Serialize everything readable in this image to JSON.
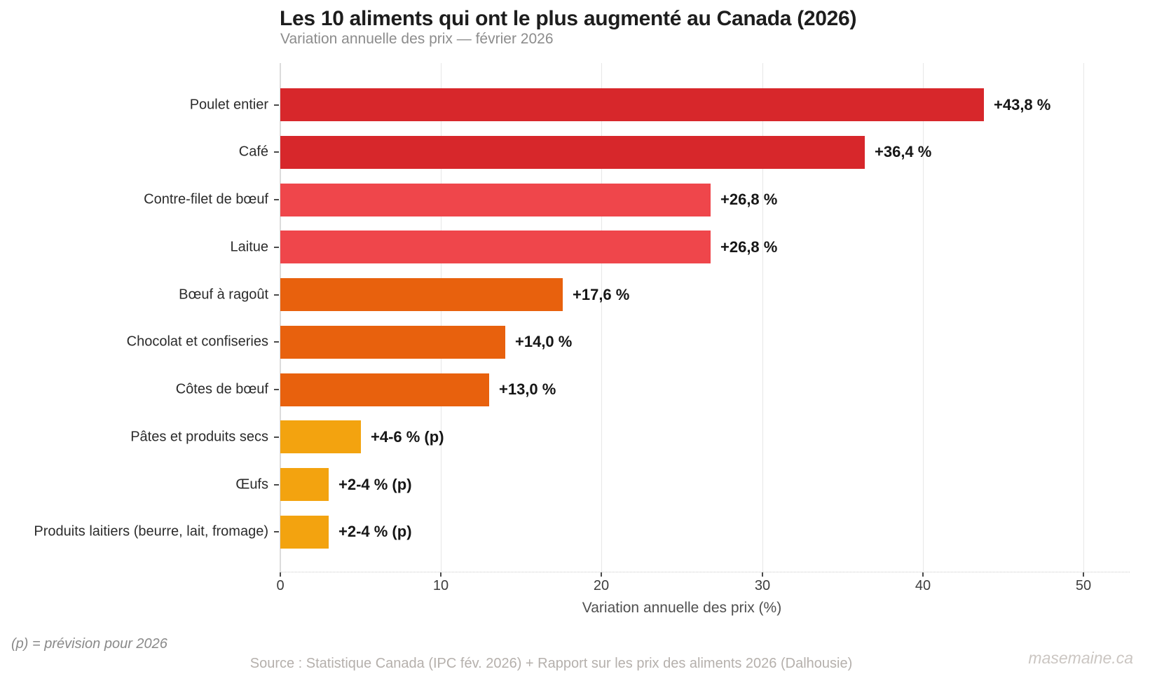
{
  "header": {
    "title": "Les 10 aliments qui ont le plus augmenté au Canada (2026)",
    "subtitle": "Variation annuelle des prix — février 2026"
  },
  "chart_data": {
    "type": "bar",
    "orientation": "horizontal",
    "title": "Les 10 aliments qui ont le plus augmenté au Canada (2026)",
    "subtitle": "Variation annuelle des prix — février 2026",
    "categories": [
      "Poulet entier",
      "Café",
      "Contre-filet de bœuf",
      "Laitue",
      "Bœuf à ragoût",
      "Chocolat et confiseries",
      "Côtes de bœuf",
      "Pâtes et produits secs",
      "Œufs",
      "Produits laitiers (beurre, lait, fromage)"
    ],
    "values": [
      43.8,
      36.4,
      26.8,
      26.8,
      17.6,
      14.0,
      13.0,
      5.0,
      3.0,
      3.0
    ],
    "value_labels": [
      "+43,8 %",
      "+36,4 %",
      "+26,8 %",
      "+26,8 %",
      "+17,6 %",
      "+14,0 %",
      "+13,0 %",
      "+4-6 % (p)",
      "+2-4 % (p)",
      "+2-4 % (p)"
    ],
    "bar_colors": [
      "#d7272b",
      "#d7272b",
      "#ef464b",
      "#ef464b",
      "#e8610d",
      "#e8610d",
      "#e8610d",
      "#f3a30f",
      "#f3a30f",
      "#f3a30f"
    ],
    "xlabel": "Variation annuelle des prix (%)",
    "ylabel": "",
    "xlim": [
      0,
      52.9
    ],
    "xticks": [
      0,
      10,
      20,
      30,
      40,
      50
    ],
    "xtick_labels": [
      "0",
      "10",
      "20",
      "30",
      "40",
      "50"
    ],
    "grid": true,
    "legend": false
  },
  "footer": {
    "footnote": "(p) = prévision pour 2026",
    "source": "Source : Statistique Canada (IPC fév. 2026) + Rapport sur les prix des aliments 2026 (Dalhousie)",
    "watermark": "masemaine.ca"
  },
  "colors": {
    "strong_red": "#d7272b",
    "coral_red": "#ef464b",
    "orange": "#e8610d",
    "amber": "#f3a30f",
    "gridline": "#e7e7e7",
    "spine": "#dcdcdc",
    "title_text": "#1d1d1d",
    "subtitle_text": "#8c8c8c",
    "source_text": "#b5b0ac"
  }
}
